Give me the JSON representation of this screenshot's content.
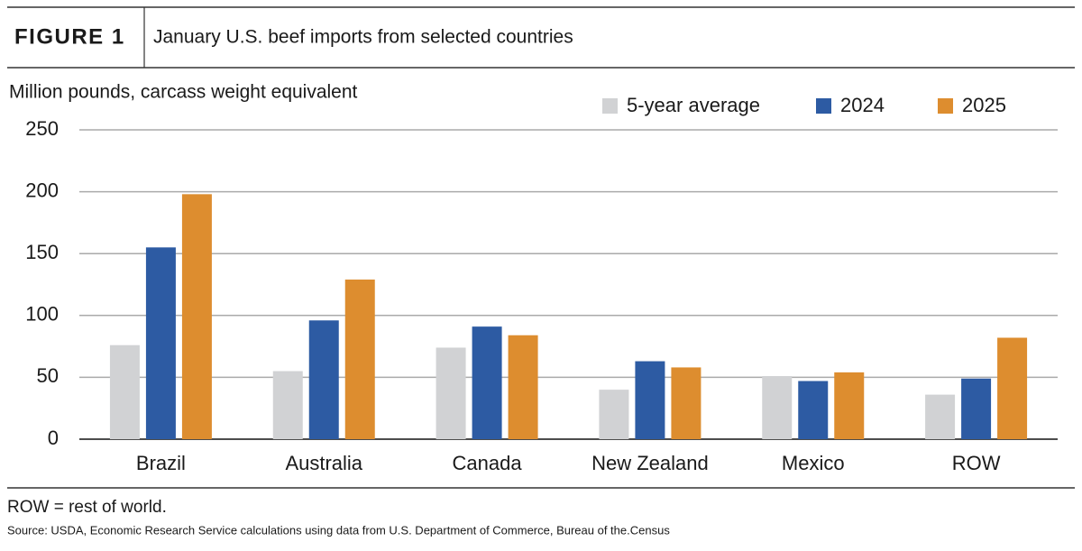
{
  "figure_label": "FIGURE 1",
  "chart_data": {
    "type": "bar",
    "title": "January U.S. beef imports from selected countries",
    "y_label": "Million pounds, carcass weight equivalent",
    "categories": [
      "Brazil",
      "Australia",
      "Canada",
      "New Zealand",
      "Mexico",
      "ROW"
    ],
    "series": [
      {
        "name": "5-year average",
        "color": "#d1d2d4",
        "values": [
          76,
          55,
          74,
          40,
          51,
          36
        ]
      },
      {
        "name": "2024",
        "color": "#2d5ba3",
        "values": [
          155,
          96,
          91,
          63,
          47,
          49
        ]
      },
      {
        "name": "2025",
        "color": "#dd8d2f",
        "values": [
          198,
          129,
          84,
          58,
          54,
          82
        ]
      }
    ],
    "ylim": [
      0,
      250
    ],
    "yticks": [
      0,
      50,
      100,
      150,
      200,
      250
    ],
    "grid": true,
    "note": "ROW = rest of world.",
    "source": "Source: USDA, Economic Research Service calculations using data from U.S. Department of Commerce, Bureau of the.Census"
  }
}
